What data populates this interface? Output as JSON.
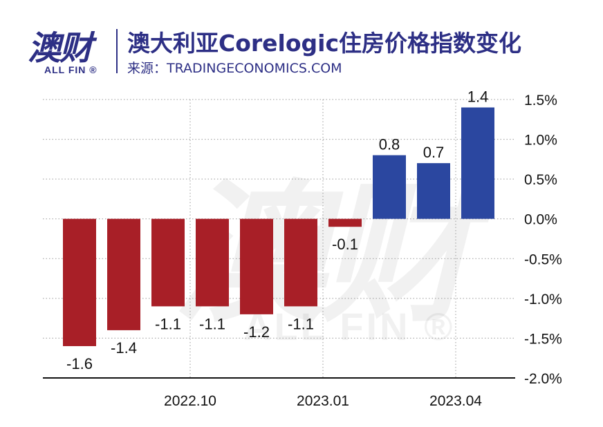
{
  "header": {
    "logo_cn": "澳财",
    "logo_en": "ALL FIN ®",
    "title": "澳大利亚Corelogic住房价格指数变化",
    "source": "来源：TRADINGECONOMICS.COM"
  },
  "watermark": {
    "cn": "澳财",
    "en": "ALL FIN ®"
  },
  "chart_data": {
    "type": "bar",
    "title": "澳大利亚Corelogic住房价格指数变化",
    "values": [
      -1.6,
      -1.4,
      -1.1,
      -1.1,
      -1.2,
      -1.1,
      -0.1,
      0.8,
      0.7,
      1.4
    ],
    "data_labels": [
      "-1.6",
      "-1.4",
      "-1.1",
      "-1.1",
      "-1.2",
      "-1.1",
      "-0.1",
      "0.8",
      "0.7",
      "1.4"
    ],
    "x_tick_labels": [
      {
        "after_bar": 2,
        "label": "2022.10"
      },
      {
        "after_bar": 5,
        "label": "2023.01"
      },
      {
        "after_bar": 8,
        "label": "2023.04"
      }
    ],
    "ylim": [
      -2.0,
      1.5
    ],
    "y_ticks": [
      1.5,
      1.0,
      0.5,
      0.0,
      -0.5,
      -1.0,
      -1.5,
      -2.0
    ],
    "y_tick_labels": [
      "1.5%",
      "1.0%",
      "0.5%",
      "0.0%",
      "-0.5%",
      "-1.0%",
      "-1.5%",
      "-2.0%"
    ],
    "grid": true,
    "axis_position": "right",
    "colors": {
      "negative": "#a81f27",
      "positive": "#2b47a0",
      "grid": "#999999",
      "text": "#111111"
    }
  }
}
